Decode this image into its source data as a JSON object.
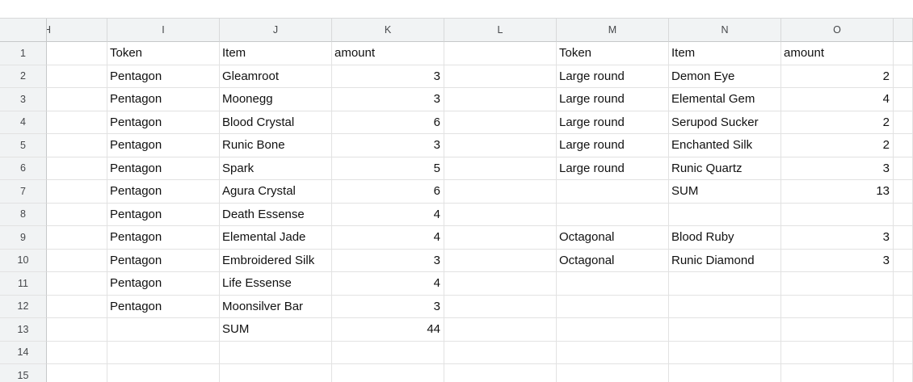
{
  "sheet": {
    "corner_label": "",
    "columns": [
      "H",
      "I",
      "J",
      "K",
      "L",
      "M",
      "N",
      "O",
      ""
    ],
    "rows": [
      {
        "n": "1",
        "cells": {
          "I": "Token",
          "J": "Item",
          "K": "amount",
          "M": "Token",
          "N": "Item",
          "O": "amount"
        }
      },
      {
        "n": "2",
        "cells": {
          "I": "Pentagon",
          "J": "Gleamroot",
          "K": 3,
          "M": "Large round",
          "N": "Demon Eye",
          "O": 2
        }
      },
      {
        "n": "3",
        "cells": {
          "I": "Pentagon",
          "J": "Moonegg",
          "K": 3,
          "M": "Large round",
          "N": "Elemental Gem",
          "O": 4
        }
      },
      {
        "n": "4",
        "cells": {
          "I": "Pentagon",
          "J": "Blood Crystal",
          "K": 6,
          "M": "Large round",
          "N": "Serupod Sucker",
          "O": 2
        }
      },
      {
        "n": "5",
        "cells": {
          "I": "Pentagon",
          "J": "Runic Bone",
          "K": 3,
          "M": "Large round",
          "N": "Enchanted Silk",
          "O": 2
        }
      },
      {
        "n": "6",
        "cells": {
          "I": "Pentagon",
          "J": "Spark",
          "K": 5,
          "M": "Large round",
          "N": "Runic Quartz",
          "O": 3
        }
      },
      {
        "n": "7",
        "cells": {
          "I": "Pentagon",
          "J": "Agura Crystal",
          "K": 6,
          "N": "SUM",
          "O": 13
        }
      },
      {
        "n": "8",
        "cells": {
          "I": "Pentagon",
          "J": "Death Essense",
          "K": 4
        }
      },
      {
        "n": "9",
        "cells": {
          "I": "Pentagon",
          "J": "Elemental Jade",
          "K": 4,
          "M": "Octagonal",
          "N": "Blood Ruby",
          "O": 3
        }
      },
      {
        "n": "10",
        "cells": {
          "I": "Pentagon",
          "J": "Embroidered Silk",
          "K": 3,
          "M": "Octagonal",
          "N": "Runic Diamond",
          "O": 3
        }
      },
      {
        "n": "11",
        "cells": {
          "I": "Pentagon",
          "J": "Life Essense",
          "K": 4
        }
      },
      {
        "n": "12",
        "cells": {
          "I": "Pentagon",
          "J": "Moonsilver Bar",
          "K": 3
        }
      },
      {
        "n": "13",
        "cells": {
          "J": "SUM",
          "K": 44
        }
      },
      {
        "n": "14",
        "cells": {}
      },
      {
        "n": "15",
        "cells": {}
      }
    ]
  },
  "colors": {
    "background": "#ffffff",
    "header_bg": "#f1f3f4",
    "header_text": "#45474a",
    "header_border": "#c6c8c9",
    "header_border_light": "#d8d9da",
    "grid_line": "#e2e2e2",
    "cell_text": "#111111"
  }
}
